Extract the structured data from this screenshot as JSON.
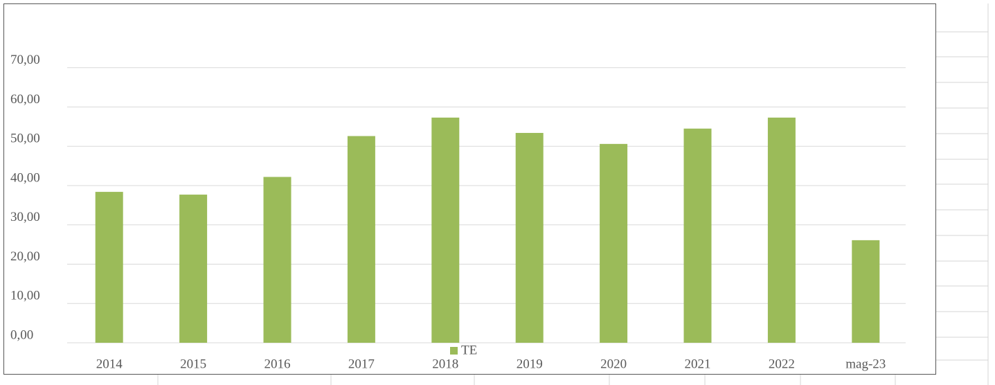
{
  "chart_data": {
    "type": "bar",
    "categories": [
      "2014",
      "2015",
      "2016",
      "2017",
      "2018",
      "2019",
      "2020",
      "2021",
      "2022",
      "mag-23"
    ],
    "series": [
      {
        "name": "TE",
        "color": "#9bbb59",
        "values": [
          38.4,
          37.7,
          42.2,
          52.6,
          57.3,
          53.4,
          50.6,
          54.5,
          57.3,
          26.1
        ]
      }
    ],
    "ylim": [
      0,
      80
    ],
    "yticks": [
      {
        "value": 0,
        "label": "0,00"
      },
      {
        "value": 10,
        "label": "10,00"
      },
      {
        "value": 20,
        "label": "20,00"
      },
      {
        "value": 30,
        "label": "30,00"
      },
      {
        "value": 40,
        "label": "40,00"
      },
      {
        "value": 50,
        "label": "50,00"
      },
      {
        "value": 60,
        "label": "60,00"
      },
      {
        "value": 70,
        "label": "70,00"
      }
    ],
    "grid": true,
    "legend": "bottom"
  }
}
